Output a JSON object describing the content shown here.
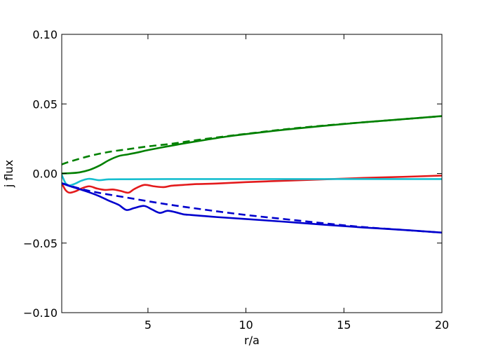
{
  "chart_data": {
    "type": "line",
    "title": "",
    "xlabel": "r/a",
    "ylabel": "j flux",
    "xlim": [
      0.6,
      20
    ],
    "ylim": [
      -0.1,
      0.1
    ],
    "xticks": [
      5,
      10,
      15,
      20
    ],
    "xtick_labels": [
      "5",
      "10",
      "15",
      "20"
    ],
    "yticks": [
      -0.1,
      -0.05,
      0.0,
      0.05,
      0.1
    ],
    "ytick_labels": [
      "−0.10",
      "−0.05",
      "0.00",
      "0.05",
      "0.10"
    ],
    "grid": false,
    "legend": false,
    "series": [
      {
        "color": "#008000",
        "dash": "dashed",
        "x": [
          0.6,
          1,
          2,
          3,
          4,
          5,
          6,
          7,
          8,
          9,
          10,
          12,
          14,
          16,
          18,
          20
        ],
        "y": [
          0.0065,
          0.0085,
          0.0125,
          0.0155,
          0.0175,
          0.0195,
          0.021,
          0.023,
          0.025,
          0.0268,
          0.0285,
          0.0318,
          0.0345,
          0.0368,
          0.039,
          0.0412
        ]
      },
      {
        "color": "#008000",
        "dash": "solid",
        "x": [
          0.6,
          1,
          1.5,
          2,
          2.5,
          3,
          3.5,
          4,
          4.5,
          5,
          6,
          7,
          8,
          9,
          10,
          12,
          14,
          16,
          18,
          20
        ],
        "y": [
          0.0,
          0.0002,
          0.0008,
          0.0025,
          0.0055,
          0.0095,
          0.0125,
          0.0138,
          0.0152,
          0.0168,
          0.0195,
          0.022,
          0.0243,
          0.0265,
          0.0283,
          0.0315,
          0.0343,
          0.0368,
          0.039,
          0.0413
        ]
      },
      {
        "color": "#e31a1c",
        "dash": "solid",
        "x": [
          0.6,
          0.8,
          1.0,
          1.3,
          1.6,
          2.0,
          2.4,
          2.8,
          3.2,
          3.6,
          4.0,
          4.3,
          4.8,
          5.3,
          5.8,
          6.2,
          6.8,
          7.5,
          8.5,
          10,
          12,
          14,
          16,
          18,
          20
        ],
        "y": [
          -0.007,
          -0.012,
          -0.0138,
          -0.0128,
          -0.0108,
          -0.0092,
          -0.0108,
          -0.0118,
          -0.0115,
          -0.0125,
          -0.0138,
          -0.0112,
          -0.0082,
          -0.0092,
          -0.0098,
          -0.0088,
          -0.0082,
          -0.0076,
          -0.0072,
          -0.0062,
          -0.0052,
          -0.0042,
          -0.0032,
          -0.0024,
          -0.0015
        ]
      },
      {
        "color": "#17becf",
        "dash": "solid",
        "x": [
          0.6,
          0.8,
          1.0,
          1.3,
          1.6,
          2.0,
          2.5,
          3.0,
          4.0,
          6,
          10,
          15,
          20
        ],
        "y": [
          -0.001,
          -0.007,
          -0.0085,
          -0.0072,
          -0.0052,
          -0.0038,
          -0.0048,
          -0.0042,
          -0.0041,
          -0.004,
          -0.004,
          -0.004,
          -0.004
        ]
      },
      {
        "color": "#0000cd",
        "dash": "dashed",
        "x": [
          0.6,
          2,
          4,
          6,
          8,
          10,
          12,
          14,
          16,
          18,
          20
        ],
        "y": [
          -0.007,
          -0.0125,
          -0.0175,
          -0.0222,
          -0.0262,
          -0.0298,
          -0.0328,
          -0.0358,
          -0.0385,
          -0.0405,
          -0.0425
        ]
      },
      {
        "color": "#0000cd",
        "dash": "solid",
        "x": [
          0.6,
          1,
          1.5,
          2,
          2.5,
          3.0,
          3.5,
          3.9,
          4.3,
          4.8,
          5.2,
          5.6,
          6.0,
          6.4,
          6.8,
          7.2,
          7.8,
          8.5,
          10,
          12,
          14,
          16,
          18,
          20
        ],
        "y": [
          -0.007,
          -0.009,
          -0.0112,
          -0.0135,
          -0.0162,
          -0.0195,
          -0.0225,
          -0.0262,
          -0.0248,
          -0.0233,
          -0.0258,
          -0.0283,
          -0.0268,
          -0.0278,
          -0.0293,
          -0.0298,
          -0.0305,
          -0.0313,
          -0.0327,
          -0.0347,
          -0.0368,
          -0.0388,
          -0.0405,
          -0.0425
        ]
      }
    ]
  }
}
